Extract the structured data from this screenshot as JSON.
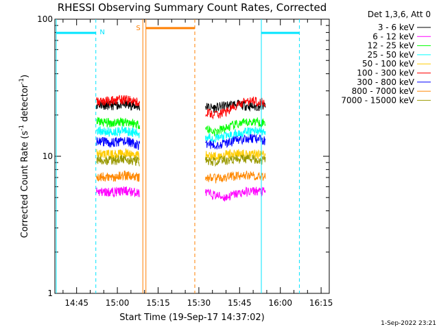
{
  "chart_data": {
    "type": "line",
    "title": "RHESSI Observing Summary Count Rates, Corrected",
    "xlabel": "Start Time (19-Sep-17 14:37:02)",
    "ylabel_main": "Corrected Count Rate (s",
    "ylabel_sup1": "-1",
    "ylabel_mid": " detector",
    "ylabel_sup2": "-1",
    "ylabel_end": ")",
    "yscale": "log",
    "ylim": [
      1,
      100
    ],
    "xlim": [
      "14:37",
      "16:18"
    ],
    "y_ticks": [
      {
        "value": 1,
        "label": "1"
      },
      {
        "value": 10,
        "label": "10"
      },
      {
        "value": 100,
        "label": "100"
      }
    ],
    "x_ticks": [
      {
        "value": "14:45",
        "label": "14:45"
      },
      {
        "value": "15:00",
        "label": "15:00"
      },
      {
        "value": "15:15",
        "label": "15:15"
      },
      {
        "value": "15:30",
        "label": "15:30"
      },
      {
        "value": "15:45",
        "label": "15:45"
      },
      {
        "value": "16:00",
        "label": "16:00"
      },
      {
        "value": "16:15",
        "label": "16:15"
      }
    ],
    "legend": {
      "header": "Det 1,3,6, Att 0",
      "placement": "right"
    },
    "series": [
      {
        "name": "3 - 6 keV",
        "color": "#000000",
        "seg1": [
          24,
          23.5,
          24,
          23
        ],
        "seg2": [
          23,
          22.5,
          23.5,
          24,
          23.5,
          23,
          23.5
        ]
      },
      {
        "name": "6 - 12 keV",
        "color": "#ff00ff",
        "seg1": [
          5.5,
          5.5,
          5.6,
          5.4
        ],
        "seg2": [
          5.4,
          5.2,
          5.0,
          5.3,
          5.5,
          5.6,
          5.5
        ]
      },
      {
        "name": "12 - 25 keV",
        "color": "#00ff00",
        "seg1": [
          18,
          17.5,
          18,
          17
        ],
        "seg2": [
          16,
          15,
          16,
          17,
          17.5,
          18,
          17.5
        ]
      },
      {
        "name": "25 - 50 keV",
        "color": "#00ffff",
        "seg1": [
          15.5,
          15,
          15.5,
          14.5
        ],
        "seg2": [
          14,
          13.5,
          14,
          14.5,
          15,
          15.5,
          15
        ]
      },
      {
        "name": "50 - 100 keV",
        "color": "#ffcc00",
        "seg1": [
          10.5,
          10.3,
          10.5,
          10.2
        ],
        "seg2": [
          10.2,
          10,
          10.3,
          10.5,
          10.4,
          10.5,
          10.3
        ]
      },
      {
        "name": "100 - 300 keV",
        "color": "#ff0000",
        "seg1": [
          25,
          25.5,
          26,
          24.5
        ],
        "seg2": [
          21,
          20,
          21,
          23,
          25,
          25.5,
          24.5
        ]
      },
      {
        "name": "300 - 800 keV",
        "color": "#0000ff",
        "seg1": [
          13,
          12.5,
          13,
          12
        ],
        "seg2": [
          12.5,
          12,
          12.5,
          13,
          13.5,
          13.5,
          13
        ]
      },
      {
        "name": "800 - 7000 keV",
        "color": "#ff8800",
        "seg1": [
          7.2,
          7.0,
          7.3,
          7.0
        ],
        "seg2": [
          7.0,
          6.9,
          7.0,
          7.2,
          7.3,
          7.2,
          7.1
        ]
      },
      {
        "name": "7000 - 15000 keV",
        "color": "#999900",
        "seg1": [
          9.5,
          9.3,
          9.5,
          9.2
        ],
        "seg2": [
          9.3,
          9.1,
          9.4,
          9.5,
          9.6,
          9.5,
          9.4
        ]
      }
    ],
    "annotations": {
      "night_label": "N",
      "saa_label": "S"
    },
    "footer_date": "1-Sep-2022 23:21"
  }
}
